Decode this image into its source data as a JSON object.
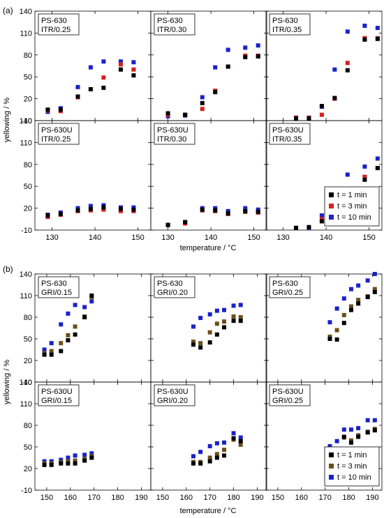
{
  "figure": {
    "y_label": "yellowing / %",
    "x_label": "temperature / °C"
  },
  "legend": {
    "entries": [
      {
        "label": "t =   1 min",
        "color": "#000000"
      },
      {
        "label": "t =   3 min",
        "color": "#d62020"
      },
      {
        "label": "t = 10 min",
        "color": "#1a22c8"
      }
    ],
    "entries_b": [
      {
        "label": "t =   1 min",
        "color": "#000000"
      },
      {
        "label": "t =   3 min",
        "color": "#6b4f1a"
      },
      {
        "label": "t = 10 min",
        "color": "#1a22c8"
      }
    ]
  },
  "chart_data": [
    {
      "type": "scatter",
      "panel_label": "(a)",
      "ylim": [
        -10,
        140
      ],
      "yticks": [
        -10,
        20,
        50,
        80,
        110,
        140
      ],
      "xlim": [
        126,
        153
      ],
      "xticks": [
        130,
        140,
        150
      ],
      "top_row": [
        {
          "title1": "PS-630",
          "title2": "ITR/0.25",
          "series": [
            {
              "name": "t =   1 min",
              "x": [
                129,
                132,
                136,
                139,
                142,
                146,
                149
              ],
              "y": [
                5,
                5,
                23,
                33,
                35,
                60,
                52
              ]
            },
            {
              "name": "t =   3 min",
              "x": [
                129,
                132,
                136,
                139,
                142,
                146,
                149
              ],
              "y": [
                4,
                3,
                22,
                33,
                49,
                67,
                60
              ]
            },
            {
              "name": "t = 10 min",
              "x": [
                129,
                132,
                136,
                139,
                142,
                146,
                149
              ],
              "y": [
                2,
                7,
                36,
                63,
                71,
                71,
                70
              ]
            }
          ]
        },
        {
          "title1": "PS-630",
          "title2": "ITR/0.30",
          "series": [
            {
              "name": "t =   1 min",
              "x": [
                130,
                134,
                138,
                141,
                144,
                148,
                151
              ],
              "y": [
                0,
                -2,
                14,
                29,
                64,
                77,
                78
              ]
            },
            {
              "name": "t =   3 min",
              "x": [
                130,
                134,
                138,
                141,
                144,
                148,
                151
              ],
              "y": [
                -2,
                -2,
                6,
                31,
                64,
                79,
                79
              ]
            },
            {
              "name": "t = 10 min",
              "x": [
                130,
                134,
                138,
                141,
                144,
                148,
                151
              ],
              "y": [
                -4,
                -3,
                22,
                63,
                87,
                90,
                93
              ]
            }
          ]
        },
        {
          "title1": "PS-630",
          "title2": "ITR/0.35",
          "series": [
            {
              "name": "t =   1 min",
              "x": [
                133,
                136,
                139,
                142,
                145,
                149,
                152
              ],
              "y": [
                -7,
                -7,
                10,
                21,
                59,
                101,
                102
              ]
            },
            {
              "name": "t =   3 min",
              "x": [
                133,
                136,
                139,
                142,
                145,
                149,
                152
              ],
              "y": [
                -6,
                -6,
                -2,
                20,
                69,
                103,
                103
              ]
            },
            {
              "name": "t = 10 min",
              "x": [
                133,
                136,
                139,
                142,
                145,
                149,
                152
              ],
              "y": [
                -6,
                -6,
                9,
                60,
                112,
                120,
                117
              ]
            }
          ]
        }
      ],
      "bottom_row": [
        {
          "title1": "PS-630U",
          "title2": "ITR/0.25",
          "series": [
            {
              "name": "t =   1 min",
              "x": [
                129,
                132,
                136,
                139,
                142,
                146,
                149
              ],
              "y": [
                10,
                12,
                17,
                19,
                21,
                19,
                18
              ]
            },
            {
              "name": "t =   3 min",
              "x": [
                129,
                132,
                136,
                139,
                142,
                146,
                149
              ],
              "y": [
                8,
                11,
                16,
                17,
                18,
                16,
                16
              ]
            },
            {
              "name": "t = 10 min",
              "x": [
                129,
                132,
                136,
                139,
                142,
                146,
                149
              ],
              "y": [
                11,
                14,
                20,
                23,
                24,
                21,
                21
              ]
            }
          ]
        },
        {
          "title1": "PS-630U",
          "title2": "ITR/0.30",
          "series": [
            {
              "name": "t =   1 min",
              "x": [
                130,
                134,
                138,
                141,
                144,
                148,
                151
              ],
              "y": [
                -3,
                1,
                18,
                17,
                13,
                16,
                15
              ]
            },
            {
              "name": "t =   3 min",
              "x": [
                130,
                134,
                138,
                141,
                144,
                148,
                151
              ],
              "y": [
                -3,
                -1,
                17,
                16,
                12,
                15,
                14
              ]
            },
            {
              "name": "t = 10 min",
              "x": [
                130,
                134,
                138,
                141,
                144,
                148,
                151
              ],
              "y": [
                -3,
                0,
                20,
                20,
                16,
                20,
                18
              ]
            }
          ]
        },
        {
          "title1": "PS-630U",
          "title2": "ITR/0.35",
          "series": [
            {
              "name": "t =   1 min",
              "x": [
                133,
                136,
                139,
                142,
                145,
                149,
                152
              ],
              "y": [
                -7,
                -6,
                2,
                31,
                43,
                59,
                75
              ]
            },
            {
              "name": "t =   3 min",
              "x": [
                133,
                136,
                139,
                142,
                145,
                149,
                152
              ],
              "y": [
                -7,
                -6,
                5,
                20,
                40,
                63,
                75
              ]
            },
            {
              "name": "t = 10 min",
              "x": [
                133,
                136,
                139,
                142,
                145,
                149,
                152
              ],
              "y": [
                -7,
                -7,
                10,
                46,
                66,
                77,
                88
              ]
            }
          ]
        }
      ]
    },
    {
      "type": "scatter",
      "panel_label": "(b)",
      "ylim": [
        -10,
        140
      ],
      "yticks": [
        -10,
        20,
        50,
        80,
        110,
        140
      ],
      "xlim": [
        145,
        194
      ],
      "xticks": [
        150,
        160,
        170,
        180,
        190
      ],
      "top_row": [
        {
          "title1": "PS-630",
          "title2": "GRI/0.15",
          "series": [
            {
              "name": "t =   1 min",
              "x": [
                149,
                152,
                156,
                159,
                162,
                166,
                169
              ],
              "y": [
                28,
                28,
                33,
                48,
                56,
                80,
                110
              ]
            },
            {
              "name": "t =   3 min",
              "x": [
                149,
                152,
                156,
                159,
                162,
                166,
                169
              ],
              "y": [
                30,
                33,
                44,
                55,
                67,
                81,
                108
              ]
            },
            {
              "name": "t = 10 min",
              "x": [
                149,
                152,
                156,
                159,
                162,
                166,
                169
              ],
              "y": [
                35,
                44,
                70,
                85,
                97,
                94,
                102
              ]
            }
          ]
        },
        {
          "title1": "PS-630",
          "title2": "GRI/0.20",
          "series": [
            {
              "name": "t =   1 min",
              "x": [
                163,
                166,
                170,
                173,
                176,
                180,
                183
              ],
              "y": [
                42,
                38,
                45,
                56,
                66,
                75,
                75
              ]
            },
            {
              "name": "t =   3 min",
              "x": [
                163,
                166,
                170,
                173,
                176,
                180,
                183
              ],
              "y": [
                46,
                44,
                59,
                71,
                74,
                81,
                80
              ]
            },
            {
              "name": "t = 10 min",
              "x": [
                163,
                166,
                170,
                173,
                176,
                180,
                183
              ],
              "y": [
                67,
                79,
                84,
                89,
                90,
                96,
                97
              ]
            }
          ]
        },
        {
          "title1": "PS-630",
          "title2": "GRI/0.25",
          "series": [
            {
              "name": "t =   1 min",
              "x": [
                172,
                175,
                178,
                181,
                184,
                188,
                191
              ],
              "y": [
                50,
                49,
                72,
                90,
                99,
                108,
                115
              ]
            },
            {
              "name": "t =   3 min",
              "x": [
                172,
                175,
                178,
                181,
                184,
                188,
                191
              ],
              "y": [
                53,
                62,
                83,
                95,
                104,
                109,
                119
              ]
            },
            {
              "name": "t = 10 min",
              "x": [
                172,
                175,
                178,
                181,
                184,
                188,
                191
              ],
              "y": [
                73,
                92,
                106,
                119,
                124,
                131,
                140
              ]
            }
          ]
        }
      ],
      "bottom_row": [
        {
          "title1": "PS-630U",
          "title2": "GRI/0.15",
          "series": [
            {
              "name": "t =   1 min",
              "x": [
                149,
                152,
                156,
                159,
                162,
                166,
                169
              ],
              "y": [
                25,
                25,
                27,
                27,
                27,
                31,
                35
              ]
            },
            {
              "name": "t =   3 min",
              "x": [
                149,
                152,
                156,
                159,
                162,
                166,
                169
              ],
              "y": [
                27,
                27,
                29,
                30,
                31,
                33,
                37
              ]
            },
            {
              "name": "t = 10 min",
              "x": [
                149,
                152,
                156,
                159,
                162,
                166,
                169
              ],
              "y": [
                30,
                30,
                32,
                35,
                38,
                39,
                41
              ]
            }
          ]
        },
        {
          "title1": "PS-630U",
          "title2": "GRI/0.20",
          "series": [
            {
              "name": "t =   1 min",
              "x": [
                163,
                166,
                170,
                173,
                176,
                180,
                183
              ],
              "y": [
                27,
                27,
                30,
                35,
                38,
                62,
                58
              ]
            },
            {
              "name": "t =   3 min",
              "x": [
                163,
                166,
                170,
                173,
                176,
                180,
                183
              ],
              "y": [
                29,
                29,
                35,
                40,
                46,
                60,
                53
              ]
            },
            {
              "name": "t = 10 min",
              "x": [
                163,
                166,
                170,
                173,
                176,
                180,
                183
              ],
              "y": [
                37,
                43,
                51,
                55,
                56,
                69,
                63
              ]
            }
          ]
        },
        {
          "title1": "PS-630U",
          "title2": "GRI/0.25",
          "series": [
            {
              "name": "t =   1 min",
              "x": [
                172,
                175,
                178,
                181,
                184,
                188,
                191
              ],
              "y": [
                38,
                35,
                64,
                56,
                64,
                70,
                73
              ]
            },
            {
              "name": "t =   3 min",
              "x": [
                172,
                175,
                178,
                181,
                184,
                188,
                191
              ],
              "y": [
                37,
                39,
                63,
                59,
                66,
                71,
                75
              ]
            },
            {
              "name": "t = 10 min",
              "x": [
                172,
                175,
                178,
                181,
                184,
                188,
                191
              ],
              "y": [
                51,
                58,
                74,
                74,
                76,
                87,
                87
              ]
            }
          ]
        }
      ]
    }
  ]
}
